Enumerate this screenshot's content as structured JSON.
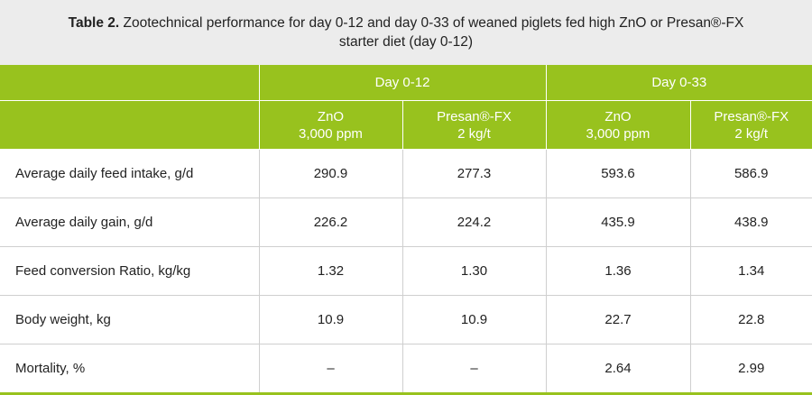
{
  "title": {
    "label": "Table 2.",
    "text": "Zootechnical performance for day 0-12 and day 0-33 of weaned piglets fed high ZnO or Presan®-FX starter diet (day 0-12)"
  },
  "table": {
    "groups": [
      "Day 0-12",
      "Day 0-33"
    ],
    "subheaders": [
      [
        "ZnO",
        "3,000 ppm"
      ],
      [
        "Presan®-FX",
        "2 kg/t"
      ],
      [
        "ZnO",
        "3,000 ppm"
      ],
      [
        "Presan®-FX",
        "2 kg/t"
      ]
    ],
    "rows": [
      [
        "Average daily feed intake, g/d",
        "290.9",
        "277.3",
        "593.6",
        "586.9"
      ],
      [
        "Average daily gain, g/d",
        "226.2",
        "224.2",
        "435.9",
        "438.9"
      ],
      [
        "Feed conversion Ratio, kg/kg",
        "1.32",
        "1.30",
        "1.36",
        "1.34"
      ],
      [
        "Body weight, kg",
        "10.9",
        "10.9",
        "22.7",
        "22.8"
      ],
      [
        "Mortality, %",
        "–",
        "–",
        "2.64",
        "2.99"
      ]
    ]
  }
}
